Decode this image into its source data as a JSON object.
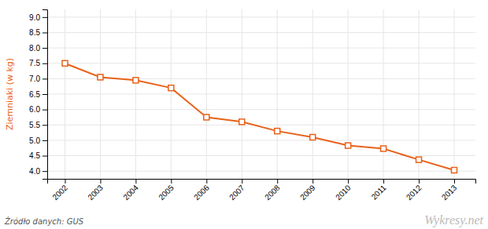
{
  "chart_data": {
    "type": "line",
    "y_label": "Ziemniaki (w kg)",
    "annotations": [
      "Źródło danych:  GUS",
      "Wykresy.net"
    ],
    "x": [
      2002,
      2003,
      2004,
      2005,
      2006,
      2007,
      2008,
      2009,
      2010,
      2011,
      2012,
      2013
    ],
    "values": [
      7.5,
      7.05,
      6.95,
      6.7,
      5.75,
      5.6,
      5.3,
      5.1,
      4.83,
      4.73,
      4.37,
      4.03
    ],
    "color": "#e8621a",
    "marker": "square",
    "xlim": [
      2001.5,
      2013.6
    ],
    "xticks": [
      2002,
      2003,
      2004,
      2005,
      2006,
      2007,
      2008,
      2009,
      2010,
      2011,
      2012,
      2013
    ],
    "ylim": [
      3.75,
      9.25
    ],
    "yticks": [
      {
        "value": 4.0,
        "label": "4.0"
      },
      4.5,
      {
        "value": 5.0,
        "label": "5.0"
      },
      5.5,
      {
        "value": 6.0,
        "label": "6.0"
      },
      6.5,
      {
        "value": 7.0,
        "label": "7.0"
      },
      7.5,
      {
        "value": 8.0,
        "label": "8.0"
      },
      8.5,
      {
        "value": 9.0,
        "label": "9.0"
      }
    ],
    "grid": true
  }
}
